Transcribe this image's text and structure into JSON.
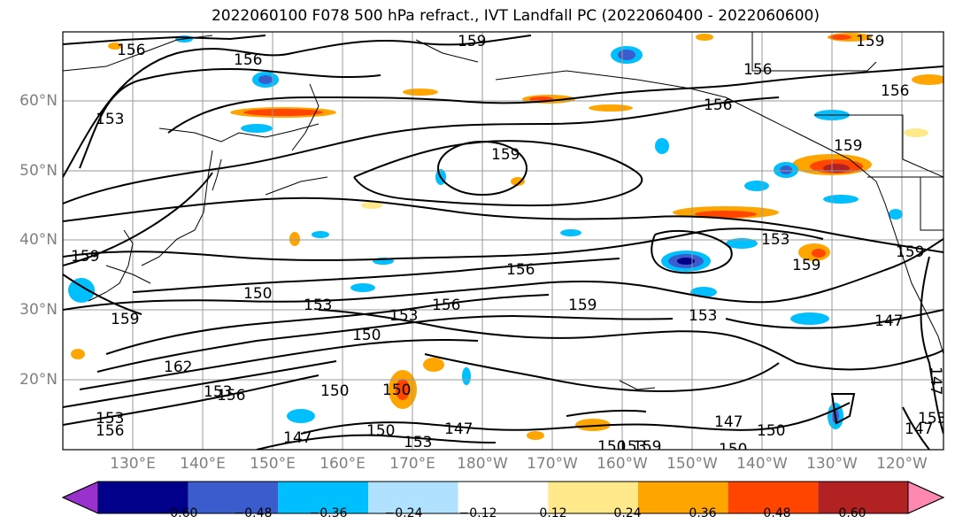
{
  "title": "2022060100 F078 500 hPa refract., IVT Landfall PC (2022060400 - 2022060600)",
  "lat_labels": [
    "60°N",
    "50°N",
    "40°N",
    "30°N",
    "20°N"
  ],
  "lon_labels": [
    "130°E",
    "140°E",
    "150°E",
    "160°E",
    "170°E",
    "180°W",
    "170°W",
    "160°W",
    "150°W",
    "140°W",
    "130°W",
    "120°W"
  ],
  "colorbar": {
    "colors": [
      "#9932cc",
      "#00008b",
      "#3a5ccc",
      "#00bfff",
      "#b0e2ff",
      "#ffffff",
      "#ffe98a",
      "#ffa500",
      "#ff4500",
      "#b22222",
      "#ff88b0"
    ],
    "ticks": [
      "−0.60",
      "−0.48",
      "−0.36",
      "−0.24",
      "−0.12",
      "0.12",
      "0.24",
      "0.36",
      "0.48",
      "0.60"
    ]
  },
  "contour_labels": [
    "156",
    "159",
    "156",
    "153",
    "156",
    "159",
    "156",
    "159",
    "156",
    "159",
    "153",
    "159",
    "156",
    "150",
    "153",
    "153",
    "156",
    "159",
    "159",
    "153",
    "159",
    "147",
    "150",
    "162",
    "153",
    "156",
    "153",
    "156",
    "150",
    "150",
    "147",
    "150",
    "153",
    "147",
    "150",
    "153",
    "159",
    "147",
    "150",
    "150",
    "147",
    "153",
    "159"
  ]
}
